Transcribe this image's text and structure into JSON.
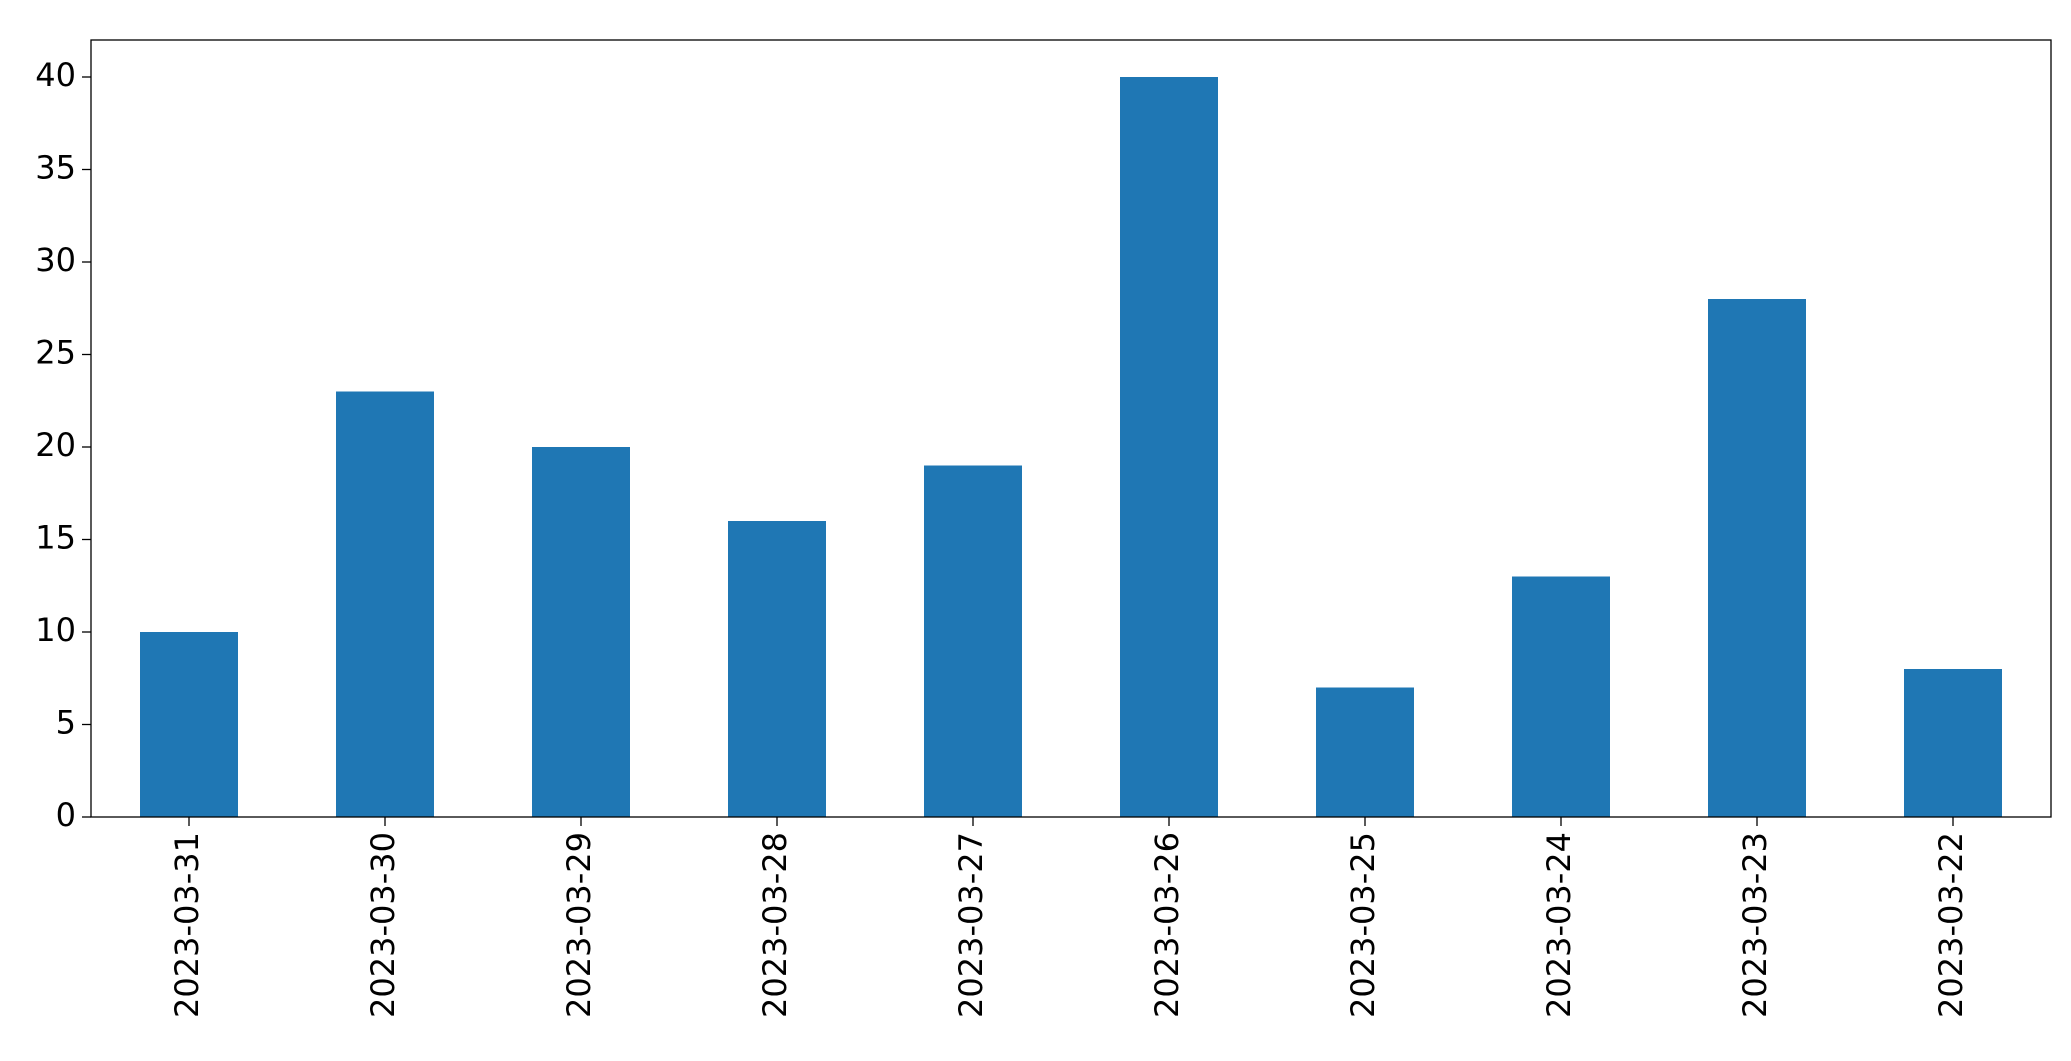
{
  "chart_data": {
    "type": "bar",
    "categories": [
      "2023-03-31",
      "2023-03-30",
      "2023-03-29",
      "2023-03-28",
      "2023-03-27",
      "2023-03-26",
      "2023-03-25",
      "2023-03-24",
      "2023-03-23",
      "2023-03-22"
    ],
    "values": [
      10,
      23,
      20,
      16,
      19,
      40,
      7,
      13,
      28,
      8
    ],
    "color": "#1f77b4",
    "ylim": [
      0,
      42
    ],
    "yticks": [
      0,
      5,
      10,
      15,
      20,
      25,
      30,
      35,
      40
    ],
    "grid": false
  }
}
